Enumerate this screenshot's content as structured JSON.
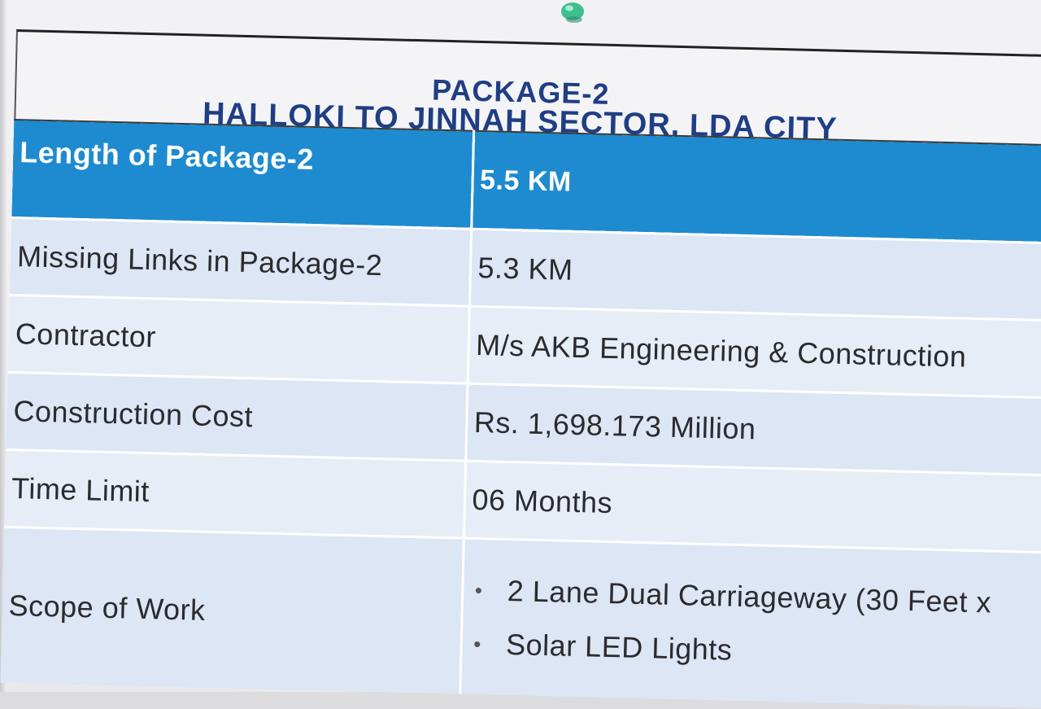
{
  "title": {
    "line1": "PACKAGE-2",
    "line2": "HALLOKI TO JINNAH SECTOR, LDA CITY"
  },
  "rows": [
    {
      "label": "Length of Package-2",
      "value": "5.5 KM"
    },
    {
      "label": "Missing Links in Package-2",
      "value": "5.3 KM"
    },
    {
      "label": "Contractor",
      "value": "M/s AKB Engineering & Construction"
    },
    {
      "label": "Construction Cost",
      "value": "Rs. 1,698.173 Million"
    },
    {
      "label": "Time Limit",
      "value": "06 Months"
    },
    {
      "label": "Scope of Work",
      "items": [
        "2 Lane Dual Carriageway (30 Feet x",
        "Solar LED Lights"
      ]
    }
  ],
  "bullet": "•",
  "colors": {
    "header_blue": "#1e8bd0",
    "title_navy": "#1f3e84",
    "row_light": "#dce6f4",
    "row_lighter": "#e6edf7"
  },
  "icons": [
    "pushpin-icon"
  ]
}
